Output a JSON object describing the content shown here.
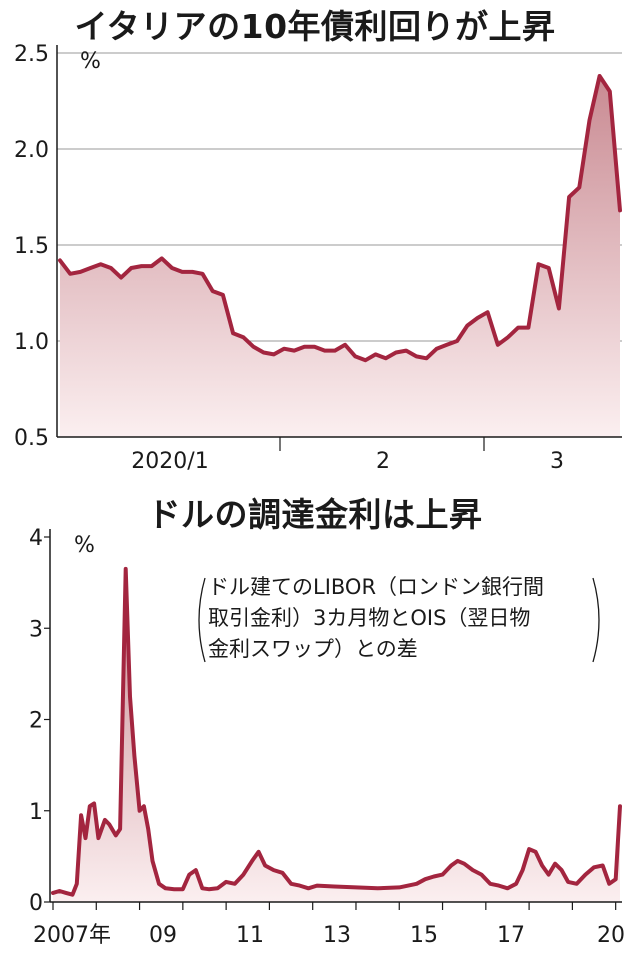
{
  "chart_data": [
    {
      "type": "area",
      "title": "イタリアの10年債利回りが上昇",
      "unit": "%",
      "ylim": [
        0.5,
        2.5
      ],
      "yticks": [
        "0.5",
        "1.0",
        "1.5",
        "2.0",
        "2.5"
      ],
      "xlabels": [
        "2020/1",
        "2",
        "3"
      ],
      "grid": true,
      "color": "#a3253f",
      "values": [
        1.42,
        1.35,
        1.36,
        1.38,
        1.4,
        1.38,
        1.33,
        1.38,
        1.39,
        1.39,
        1.43,
        1.38,
        1.36,
        1.36,
        1.35,
        1.26,
        1.24,
        1.04,
        1.02,
        0.97,
        0.94,
        0.93,
        0.96,
        0.95,
        0.97,
        0.97,
        0.95,
        0.95,
        0.98,
        0.92,
        0.9,
        0.93,
        0.91,
        0.94,
        0.95,
        0.92,
        0.91,
        0.96,
        0.98,
        1.0,
        1.08,
        1.12,
        1.15,
        0.98,
        1.02,
        1.07,
        1.07,
        1.4,
        1.38,
        1.17,
        1.75,
        1.8,
        2.15,
        2.38,
        2.3,
        1.68
      ]
    },
    {
      "type": "area",
      "title": "ドルの調達金利は上昇",
      "unit": "%",
      "ylim": [
        0,
        4
      ],
      "yticks": [
        "0",
        "1",
        "2",
        "3",
        "4"
      ],
      "xlabels": [
        "2007年",
        "09",
        "11",
        "13",
        "15",
        "17",
        "20"
      ],
      "annotation": [
        "ドル建てのLIBOR（ロンドン銀行間",
        "取引金利）3カ月物とOIS（翌日物",
        "金利スワップ）との差"
      ],
      "grid": false,
      "color": "#a3253f",
      "points": [
        [
          2007.0,
          0.1
        ],
        [
          2007.15,
          0.12
        ],
        [
          2007.3,
          0.1
        ],
        [
          2007.45,
          0.08
        ],
        [
          2007.55,
          0.2
        ],
        [
          2007.65,
          0.95
        ],
        [
          2007.75,
          0.7
        ],
        [
          2007.85,
          1.05
        ],
        [
          2007.95,
          1.08
        ],
        [
          2008.05,
          0.7
        ],
        [
          2008.2,
          0.9
        ],
        [
          2008.3,
          0.85
        ],
        [
          2008.45,
          0.73
        ],
        [
          2008.55,
          0.8
        ],
        [
          2008.68,
          3.65
        ],
        [
          2008.78,
          2.25
        ],
        [
          2008.88,
          1.6
        ],
        [
          2009.0,
          1.0
        ],
        [
          2009.1,
          1.05
        ],
        [
          2009.2,
          0.8
        ],
        [
          2009.3,
          0.45
        ],
        [
          2009.45,
          0.2
        ],
        [
          2009.6,
          0.15
        ],
        [
          2009.8,
          0.14
        ],
        [
          2010.0,
          0.14
        ],
        [
          2010.15,
          0.3
        ],
        [
          2010.3,
          0.35
        ],
        [
          2010.45,
          0.15
        ],
        [
          2010.6,
          0.14
        ],
        [
          2010.8,
          0.15
        ],
        [
          2011.0,
          0.22
        ],
        [
          2011.2,
          0.2
        ],
        [
          2011.4,
          0.3
        ],
        [
          2011.6,
          0.45
        ],
        [
          2011.75,
          0.55
        ],
        [
          2011.9,
          0.4
        ],
        [
          2012.1,
          0.35
        ],
        [
          2012.3,
          0.32
        ],
        [
          2012.5,
          0.2
        ],
        [
          2012.7,
          0.18
        ],
        [
          2012.9,
          0.15
        ],
        [
          2013.1,
          0.18
        ],
        [
          2013.5,
          0.17
        ],
        [
          2014.0,
          0.16
        ],
        [
          2014.5,
          0.15
        ],
        [
          2015.0,
          0.16
        ],
        [
          2015.4,
          0.2
        ],
        [
          2015.6,
          0.25
        ],
        [
          2015.8,
          0.28
        ],
        [
          2016.0,
          0.3
        ],
        [
          2016.2,
          0.4
        ],
        [
          2016.35,
          0.45
        ],
        [
          2016.5,
          0.42
        ],
        [
          2016.7,
          0.35
        ],
        [
          2016.9,
          0.3
        ],
        [
          2017.1,
          0.2
        ],
        [
          2017.3,
          0.18
        ],
        [
          2017.5,
          0.15
        ],
        [
          2017.7,
          0.2
        ],
        [
          2017.85,
          0.35
        ],
        [
          2018.0,
          0.58
        ],
        [
          2018.15,
          0.55
        ],
        [
          2018.3,
          0.4
        ],
        [
          2018.45,
          0.3
        ],
        [
          2018.6,
          0.42
        ],
        [
          2018.75,
          0.35
        ],
        [
          2018.9,
          0.22
        ],
        [
          2019.1,
          0.2
        ],
        [
          2019.3,
          0.3
        ],
        [
          2019.5,
          0.38
        ],
        [
          2019.7,
          0.4
        ],
        [
          2019.85,
          0.2
        ],
        [
          2020.0,
          0.25
        ],
        [
          2020.1,
          1.05
        ]
      ]
    }
  ]
}
